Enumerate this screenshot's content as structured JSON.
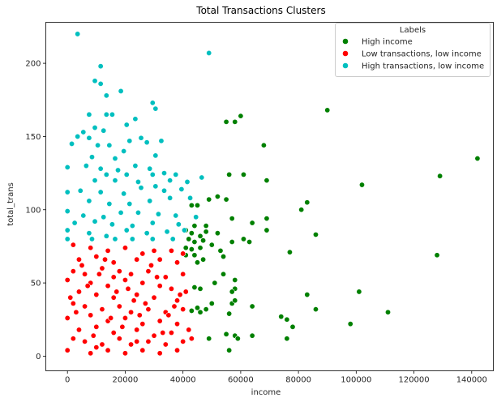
{
  "chart_data": {
    "type": "scatter",
    "title": "Total Transactions Clusters",
    "xlabel": "income",
    "ylabel": "total_trans",
    "xlim": [
      -7500,
      147500
    ],
    "ylim": [
      -10,
      228
    ],
    "xticks": [
      0,
      20000,
      40000,
      60000,
      80000,
      100000,
      120000,
      140000
    ],
    "xtick_labels": [
      "0",
      "20000",
      "40000",
      "60000",
      "80000",
      "100000",
      "120000",
      "140000"
    ],
    "yticks": [
      0,
      50,
      100,
      150,
      200
    ],
    "ytick_labels": [
      "0",
      "50",
      "100",
      "150",
      "200"
    ],
    "grid": false,
    "legend": {
      "title": "Labels",
      "placement": "upper-right"
    },
    "series": [
      {
        "name": "High income",
        "color": "#008000",
        "points": [
          [
            90000,
            168
          ],
          [
            60000,
            164
          ],
          [
            58000,
            160
          ],
          [
            55000,
            160
          ],
          [
            68000,
            144
          ],
          [
            56000,
            124
          ],
          [
            61000,
            124
          ],
          [
            69000,
            120
          ],
          [
            102000,
            117
          ],
          [
            83000,
            105
          ],
          [
            52000,
            109
          ],
          [
            55000,
            107
          ],
          [
            49000,
            107
          ],
          [
            81000,
            100
          ],
          [
            69000,
            94
          ],
          [
            57000,
            94
          ],
          [
            64000,
            91
          ],
          [
            43000,
            103
          ],
          [
            45000,
            103
          ],
          [
            44000,
            89
          ],
          [
            48000,
            89
          ],
          [
            41000,
            86
          ],
          [
            43000,
            84
          ],
          [
            48000,
            85
          ],
          [
            46000,
            82
          ],
          [
            52000,
            84
          ],
          [
            86000,
            83
          ],
          [
            61000,
            80
          ],
          [
            63000,
            78
          ],
          [
            57000,
            78
          ],
          [
            69000,
            86
          ],
          [
            42000,
            80
          ],
          [
            44000,
            78
          ],
          [
            47000,
            79
          ],
          [
            41000,
            74
          ],
          [
            43000,
            73
          ],
          [
            46000,
            74
          ],
          [
            50000,
            76
          ],
          [
            53000,
            72
          ],
          [
            54000,
            68
          ],
          [
            41000,
            69
          ],
          [
            44000,
            69
          ],
          [
            45000,
            64
          ],
          [
            47000,
            66
          ],
          [
            77000,
            71
          ],
          [
            54000,
            56
          ],
          [
            58000,
            52
          ],
          [
            58000,
            46
          ],
          [
            44000,
            47
          ],
          [
            46000,
            46
          ],
          [
            51000,
            50
          ],
          [
            57000,
            44
          ],
          [
            83000,
            42
          ],
          [
            101000,
            44
          ],
          [
            64000,
            34
          ],
          [
            57000,
            36
          ],
          [
            58000,
            38
          ],
          [
            56000,
            29
          ],
          [
            50000,
            36
          ],
          [
            43000,
            31
          ],
          [
            45000,
            33
          ],
          [
            46000,
            30
          ],
          [
            48000,
            32
          ],
          [
            74000,
            27
          ],
          [
            76000,
            25
          ],
          [
            86000,
            32
          ],
          [
            111000,
            30
          ],
          [
            98000,
            22
          ],
          [
            78000,
            20
          ],
          [
            55000,
            15
          ],
          [
            58000,
            14
          ],
          [
            64000,
            14
          ],
          [
            59000,
            12
          ],
          [
            76000,
            12
          ],
          [
            49000,
            12
          ],
          [
            56000,
            4
          ],
          [
            128000,
            69
          ],
          [
            129000,
            123
          ],
          [
            142000,
            135
          ]
        ]
      },
      {
        "name": "Low transactions, low income",
        "color": "#ff0000",
        "points": [
          [
            2000,
            76
          ],
          [
            8000,
            74
          ],
          [
            14000,
            72
          ],
          [
            20000,
            74
          ],
          [
            26000,
            70
          ],
          [
            30000,
            72
          ],
          [
            36000,
            72
          ],
          [
            40000,
            70
          ],
          [
            4000,
            66
          ],
          [
            10000,
            68
          ],
          [
            16000,
            64
          ],
          [
            24000,
            66
          ],
          [
            32000,
            66
          ],
          [
            38000,
            64
          ],
          [
            2000,
            58
          ],
          [
            6000,
            56
          ],
          [
            12000,
            60
          ],
          [
            18000,
            58
          ],
          [
            22000,
            56
          ],
          [
            28000,
            58
          ],
          [
            34000,
            54
          ],
          [
            40000,
            56
          ],
          [
            0,
            52
          ],
          [
            8000,
            50
          ],
          [
            14000,
            48
          ],
          [
            20000,
            52
          ],
          [
            26000,
            50
          ],
          [
            32000,
            48
          ],
          [
            36000,
            46
          ],
          [
            4000,
            44
          ],
          [
            10000,
            42
          ],
          [
            16000,
            40
          ],
          [
            24000,
            42
          ],
          [
            30000,
            40
          ],
          [
            38000,
            38
          ],
          [
            2000,
            36
          ],
          [
            6000,
            34
          ],
          [
            12000,
            32
          ],
          [
            18000,
            34
          ],
          [
            22000,
            30
          ],
          [
            28000,
            32
          ],
          [
            34000,
            30
          ],
          [
            40000,
            32
          ],
          [
            0,
            26
          ],
          [
            8000,
            28
          ],
          [
            14000,
            24
          ],
          [
            20000,
            26
          ],
          [
            26000,
            22
          ],
          [
            32000,
            24
          ],
          [
            38000,
            22
          ],
          [
            4000,
            18
          ],
          [
            10000,
            20
          ],
          [
            16000,
            16
          ],
          [
            24000,
            18
          ],
          [
            30000,
            14
          ],
          [
            36000,
            16
          ],
          [
            42000,
            18
          ],
          [
            2000,
            12
          ],
          [
            6000,
            10
          ],
          [
            12000,
            8
          ],
          [
            18000,
            12
          ],
          [
            22000,
            8
          ],
          [
            28000,
            10
          ],
          [
            34000,
            8
          ],
          [
            40000,
            10
          ],
          [
            0,
            4
          ],
          [
            8000,
            2
          ],
          [
            14000,
            4
          ],
          [
            20000,
            2
          ],
          [
            26000,
            4
          ],
          [
            32000,
            2
          ],
          [
            38000,
            4
          ],
          [
            5000,
            62
          ],
          [
            11000,
            56
          ],
          [
            17000,
            44
          ],
          [
            23000,
            38
          ],
          [
            29000,
            62
          ],
          [
            35000,
            28
          ],
          [
            41000,
            44
          ],
          [
            3000,
            30
          ],
          [
            9000,
            14
          ],
          [
            15000,
            26
          ],
          [
            21000,
            46
          ],
          [
            27000,
            36
          ],
          [
            33000,
            16
          ],
          [
            39000,
            42
          ],
          [
            7000,
            48
          ],
          [
            13000,
            66
          ],
          [
            19000,
            20
          ],
          [
            25000,
            28
          ],
          [
            31000,
            54
          ],
          [
            37000,
            34
          ],
          [
            43000,
            12
          ],
          [
            1000,
            40
          ],
          [
            10000,
            6
          ],
          [
            16000,
            54
          ],
          [
            24000,
            10
          ]
        ]
      },
      {
        "name": "High transactions, low income",
        "color": "#00bfbf",
        "points": [
          [
            3500,
            220
          ],
          [
            49000,
            207
          ],
          [
            11500,
            198
          ],
          [
            9500,
            188
          ],
          [
            11500,
            186
          ],
          [
            13500,
            178
          ],
          [
            18500,
            181
          ],
          [
            29500,
            173
          ],
          [
            30500,
            169
          ],
          [
            7500,
            165
          ],
          [
            13500,
            165
          ],
          [
            15500,
            165
          ],
          [
            23500,
            162
          ],
          [
            20500,
            158
          ],
          [
            9500,
            156
          ],
          [
            12500,
            154
          ],
          [
            5500,
            153
          ],
          [
            3500,
            150
          ],
          [
            7500,
            149
          ],
          [
            1500,
            145
          ],
          [
            10500,
            144
          ],
          [
            14500,
            144
          ],
          [
            21500,
            147
          ],
          [
            25500,
            149
          ],
          [
            27500,
            146
          ],
          [
            32500,
            147
          ],
          [
            19500,
            140
          ],
          [
            8500,
            136
          ],
          [
            16500,
            135
          ],
          [
            30500,
            137
          ],
          [
            6500,
            130
          ],
          [
            11500,
            128
          ],
          [
            17500,
            127
          ],
          [
            23500,
            130
          ],
          [
            28500,
            128
          ],
          [
            0,
            129
          ],
          [
            13500,
            124
          ],
          [
            20500,
            124
          ],
          [
            29500,
            124
          ],
          [
            33500,
            125
          ],
          [
            37500,
            124
          ],
          [
            9500,
            120
          ],
          [
            16500,
            120
          ],
          [
            24500,
            119
          ],
          [
            30500,
            116
          ],
          [
            35500,
            120
          ],
          [
            41500,
            119
          ],
          [
            46500,
            122
          ],
          [
            0,
            112
          ],
          [
            4500,
            113
          ],
          [
            11500,
            112
          ],
          [
            19500,
            111
          ],
          [
            25500,
            115
          ],
          [
            33500,
            113
          ],
          [
            39500,
            114
          ],
          [
            7500,
            106
          ],
          [
            14500,
            104
          ],
          [
            21500,
            104
          ],
          [
            28500,
            106
          ],
          [
            35500,
            108
          ],
          [
            42500,
            108
          ],
          [
            0,
            99
          ],
          [
            5500,
            96
          ],
          [
            12500,
            95
          ],
          [
            18500,
            98
          ],
          [
            24500,
            98
          ],
          [
            31500,
            97
          ],
          [
            37500,
            96
          ],
          [
            44500,
            95
          ],
          [
            2500,
            91
          ],
          [
            9500,
            92
          ],
          [
            15500,
            90
          ],
          [
            22500,
            89
          ],
          [
            29500,
            91
          ],
          [
            38500,
            90
          ],
          [
            0,
            86
          ],
          [
            7500,
            84
          ],
          [
            13500,
            82
          ],
          [
            20500,
            86
          ],
          [
            27500,
            84
          ],
          [
            34500,
            85
          ],
          [
            40500,
            86
          ],
          [
            0,
            80
          ],
          [
            8500,
            80
          ],
          [
            16500,
            80
          ],
          [
            22500,
            80
          ],
          [
            29500,
            80
          ],
          [
            36500,
            80
          ]
        ]
      }
    ]
  }
}
